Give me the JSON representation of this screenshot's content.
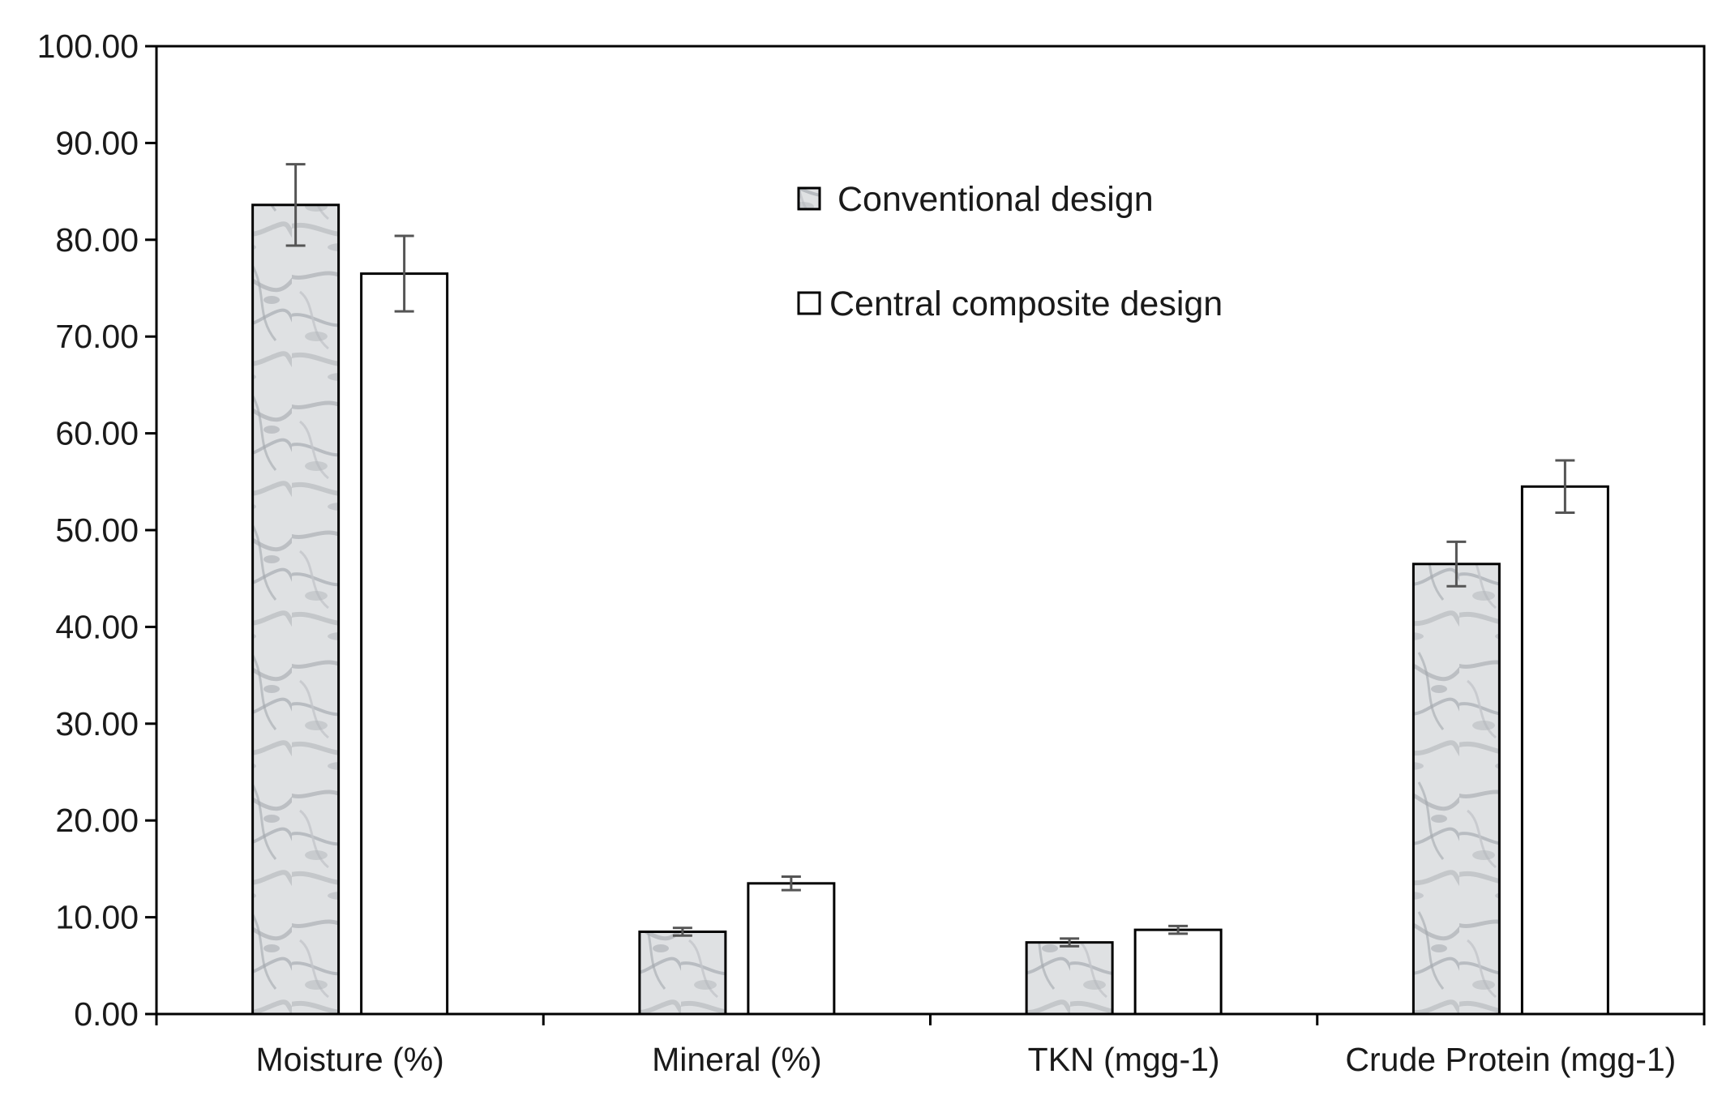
{
  "chart_data": {
    "type": "bar",
    "title": "",
    "xlabel": "",
    "ylabel": "",
    "ylim": [
      0,
      100
    ],
    "yticks": [
      0,
      10,
      20,
      30,
      40,
      50,
      60,
      70,
      80,
      90,
      100
    ],
    "ytick_labels": [
      "0.00",
      "10.00",
      "20.00",
      "30.00",
      "40.00",
      "50.00",
      "60.00",
      "70.00",
      "80.00",
      "90.00",
      "100.00"
    ],
    "categories": [
      "Moisture (%)",
      "Mineral (%)",
      "TKN (mgg-1)",
      "Crude Protein (mgg-1)"
    ],
    "series": [
      {
        "name": "Conventional design",
        "values": [
          83.6,
          8.5,
          7.4,
          46.5
        ],
        "errors": [
          4.2,
          0.4,
          0.4,
          2.3
        ],
        "fill": "#c9ccd0",
        "pattern": "marble-texture"
      },
      {
        "name": "Central composite design",
        "values": [
          76.5,
          13.5,
          8.7,
          54.5
        ],
        "errors": [
          3.9,
          0.7,
          0.4,
          2.7
        ],
        "fill": "#ffffff",
        "pattern": "none"
      }
    ],
    "legend": {
      "placement": "top-center",
      "entries": [
        "Conventional design",
        "Central composite design"
      ]
    },
    "grid": false,
    "colors": {
      "axis": "#000000",
      "bar_outline": "#000000",
      "error_bar": "#555555"
    }
  }
}
